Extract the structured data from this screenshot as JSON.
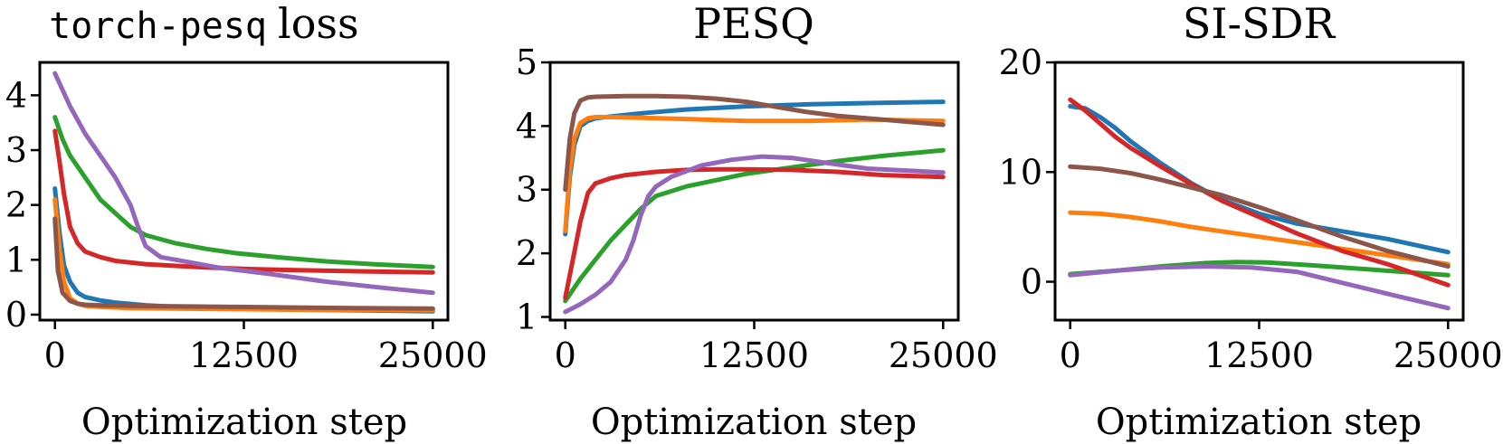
{
  "chart_data": [
    {
      "type": "line",
      "title": "loss",
      "title_code": "torch-pesq",
      "xlabel": "Optimization step",
      "ylabel": "",
      "xlim": [
        -1000,
        26000
      ],
      "ylim": [
        -0.1,
        4.6
      ],
      "xticks": [
        0,
        12500,
        25000
      ],
      "yticks": [
        0,
        1,
        2,
        3,
        4
      ],
      "series": [
        {
          "name": "blue",
          "color": "#1f77b4",
          "x": [
            0,
            300,
            600,
            1000,
            1500,
            2000,
            3000,
            4000,
            6000,
            8000,
            12000,
            16000,
            20000,
            25000
          ],
          "y": [
            2.3,
            1.5,
            0.9,
            0.6,
            0.4,
            0.32,
            0.26,
            0.22,
            0.17,
            0.14,
            0.11,
            0.09,
            0.08,
            0.06
          ]
        },
        {
          "name": "orange",
          "color": "#ff7f0e",
          "x": [
            0,
            300,
            600,
            1000,
            1500,
            2000,
            3000,
            5000,
            8000,
            12000,
            16000,
            20000,
            25000
          ],
          "y": [
            2.1,
            1.2,
            0.6,
            0.3,
            0.2,
            0.16,
            0.14,
            0.12,
            0.11,
            0.1,
            0.09,
            0.09,
            0.08
          ]
        },
        {
          "name": "green",
          "color": "#2ca02c",
          "x": [
            0,
            500,
            1000,
            2000,
            3000,
            4000,
            5000,
            6000,
            8000,
            10000,
            12000,
            15000,
            18000,
            21000,
            25000
          ],
          "y": [
            3.6,
            3.2,
            2.9,
            2.5,
            2.1,
            1.85,
            1.6,
            1.45,
            1.3,
            1.2,
            1.12,
            1.04,
            0.97,
            0.92,
            0.87
          ]
        },
        {
          "name": "red",
          "color": "#d62728",
          "x": [
            0,
            300,
            600,
            1000,
            1500,
            2000,
            3000,
            4000,
            6000,
            8000,
            10000,
            13000,
            16000,
            20000,
            25000
          ],
          "y": [
            3.35,
            2.8,
            2.2,
            1.6,
            1.3,
            1.15,
            1.05,
            0.98,
            0.92,
            0.89,
            0.86,
            0.83,
            0.81,
            0.79,
            0.77
          ]
        },
        {
          "name": "purple",
          "color": "#9467bd",
          "x": [
            0,
            500,
            1000,
            2000,
            3000,
            4000,
            5000,
            5500,
            6000,
            7000,
            9000,
            11000,
            14000,
            18000,
            22000,
            25000
          ],
          "y": [
            4.4,
            4.1,
            3.8,
            3.3,
            2.9,
            2.5,
            2.0,
            1.6,
            1.25,
            1.05,
            0.95,
            0.85,
            0.75,
            0.6,
            0.48,
            0.4
          ]
        },
        {
          "name": "brown",
          "color": "#8c564b",
          "x": [
            0,
            200,
            500,
            1000,
            1500,
            2000,
            3000,
            5000,
            8000,
            12000,
            16000,
            20000,
            25000
          ],
          "y": [
            1.75,
            0.8,
            0.4,
            0.25,
            0.2,
            0.18,
            0.17,
            0.16,
            0.15,
            0.14,
            0.13,
            0.12,
            0.11
          ]
        }
      ]
    },
    {
      "type": "line",
      "title": "PESQ",
      "xlabel": "Optimization step",
      "ylabel": "",
      "xlim": [
        -1000,
        26000
      ],
      "ylim": [
        0.95,
        5.0
      ],
      "xticks": [
        0,
        12500,
        25000
      ],
      "yticks": [
        1,
        2,
        3,
        4,
        5
      ],
      "series": [
        {
          "name": "blue",
          "color": "#1f77b4",
          "x": [
            0,
            300,
            600,
            1000,
            1500,
            2000,
            3000,
            5000,
            8000,
            12000,
            16000,
            20000,
            25000
          ],
          "y": [
            2.3,
            3.2,
            3.7,
            4.0,
            4.08,
            4.12,
            4.15,
            4.2,
            4.26,
            4.31,
            4.34,
            4.36,
            4.38
          ]
        },
        {
          "name": "orange",
          "color": "#ff7f0e",
          "x": [
            0,
            300,
            600,
            1000,
            1500,
            2000,
            3000,
            5000,
            8000,
            12000,
            16000,
            20000,
            25000
          ],
          "y": [
            2.35,
            3.3,
            3.8,
            4.05,
            4.12,
            4.14,
            4.14,
            4.13,
            4.11,
            4.08,
            4.08,
            4.1,
            4.08
          ]
        },
        {
          "name": "green",
          "color": "#2ca02c",
          "x": [
            0,
            1000,
            2000,
            3000,
            4000,
            5000,
            6000,
            8000,
            10000,
            12000,
            15000,
            18000,
            21000,
            25000
          ],
          "y": [
            1.25,
            1.6,
            1.9,
            2.2,
            2.45,
            2.7,
            2.9,
            3.05,
            3.15,
            3.25,
            3.35,
            3.45,
            3.53,
            3.62
          ]
        },
        {
          "name": "red",
          "color": "#d62728",
          "x": [
            0,
            500,
            1000,
            1500,
            2000,
            3000,
            4000,
            6000,
            8000,
            10000,
            12000,
            15000,
            18000,
            21000,
            25000
          ],
          "y": [
            1.3,
            1.9,
            2.5,
            2.95,
            3.1,
            3.18,
            3.23,
            3.28,
            3.31,
            3.32,
            3.32,
            3.31,
            3.28,
            3.23,
            3.2
          ]
        },
        {
          "name": "purple",
          "color": "#9467bd",
          "x": [
            0,
            1000,
            2000,
            3000,
            4000,
            4500,
            5000,
            5500,
            6000,
            7000,
            9000,
            11000,
            13000,
            15000,
            17000,
            20000,
            25000
          ],
          "y": [
            1.08,
            1.2,
            1.35,
            1.55,
            1.9,
            2.2,
            2.6,
            2.9,
            3.05,
            3.2,
            3.38,
            3.47,
            3.52,
            3.5,
            3.43,
            3.33,
            3.27
          ]
        },
        {
          "name": "brown",
          "color": "#8c564b",
          "x": [
            0,
            300,
            600,
            1000,
            1500,
            2000,
            4000,
            6000,
            8000,
            10000,
            12000,
            14000,
            16000,
            18000,
            21000,
            25000
          ],
          "y": [
            3.0,
            3.8,
            4.2,
            4.4,
            4.45,
            4.46,
            4.47,
            4.47,
            4.46,
            4.43,
            4.38,
            4.3,
            4.22,
            4.16,
            4.1,
            4.02
          ]
        }
      ]
    },
    {
      "type": "line",
      "title": "SI-SDR",
      "xlabel": "Optimization step",
      "ylabel": "",
      "xlim": [
        -1000,
        26000
      ],
      "ylim": [
        -3.5,
        20.0
      ],
      "xticks": [
        0,
        12500,
        25000
      ],
      "yticks": [
        0,
        10,
        20
      ],
      "series": [
        {
          "name": "blue",
          "color": "#1f77b4",
          "x": [
            0,
            1000,
            2000,
            3000,
            4000,
            6000,
            8000,
            10000,
            12500,
            15000,
            18000,
            21000,
            25000
          ],
          "y": [
            16.0,
            15.8,
            15.0,
            14.0,
            12.8,
            10.8,
            9.0,
            7.5,
            6.2,
            5.3,
            4.6,
            3.9,
            2.7
          ]
        },
        {
          "name": "orange",
          "color": "#ff7f0e",
          "x": [
            0,
            2000,
            4000,
            6000,
            8000,
            10000,
            12500,
            15000,
            18000,
            21000,
            25000
          ],
          "y": [
            6.3,
            6.2,
            5.9,
            5.5,
            5.0,
            4.6,
            4.1,
            3.6,
            3.0,
            2.4,
            1.6
          ]
        },
        {
          "name": "green",
          "color": "#2ca02c",
          "x": [
            0,
            3000,
            6000,
            9000,
            11000,
            13000,
            16000,
            19000,
            22000,
            25000
          ],
          "y": [
            0.7,
            1.0,
            1.4,
            1.7,
            1.8,
            1.75,
            1.5,
            1.2,
            0.9,
            0.6
          ]
        },
        {
          "name": "red",
          "color": "#d62728",
          "x": [
            0,
            1000,
            2000,
            3000,
            4000,
            6000,
            8000,
            10000,
            12500,
            15000,
            18000,
            21000,
            25000
          ],
          "y": [
            16.6,
            15.6,
            14.4,
            13.2,
            12.2,
            10.5,
            8.9,
            7.4,
            5.9,
            4.4,
            2.8,
            1.6,
            -0.3
          ]
        },
        {
          "name": "purple",
          "color": "#9467bd",
          "x": [
            0,
            3000,
            6000,
            9000,
            12000,
            15000,
            18000,
            21000,
            25000
          ],
          "y": [
            0.6,
            1.0,
            1.3,
            1.4,
            1.3,
            0.9,
            -0.1,
            -1.1,
            -2.4
          ]
        },
        {
          "name": "brown",
          "color": "#8c564b",
          "x": [
            0,
            2000,
            4000,
            6000,
            8000,
            10000,
            12500,
            15000,
            18000,
            21000,
            25000
          ],
          "y": [
            10.5,
            10.3,
            9.9,
            9.3,
            8.6,
            7.9,
            6.8,
            5.6,
            4.1,
            2.8,
            1.4
          ]
        }
      ]
    }
  ]
}
